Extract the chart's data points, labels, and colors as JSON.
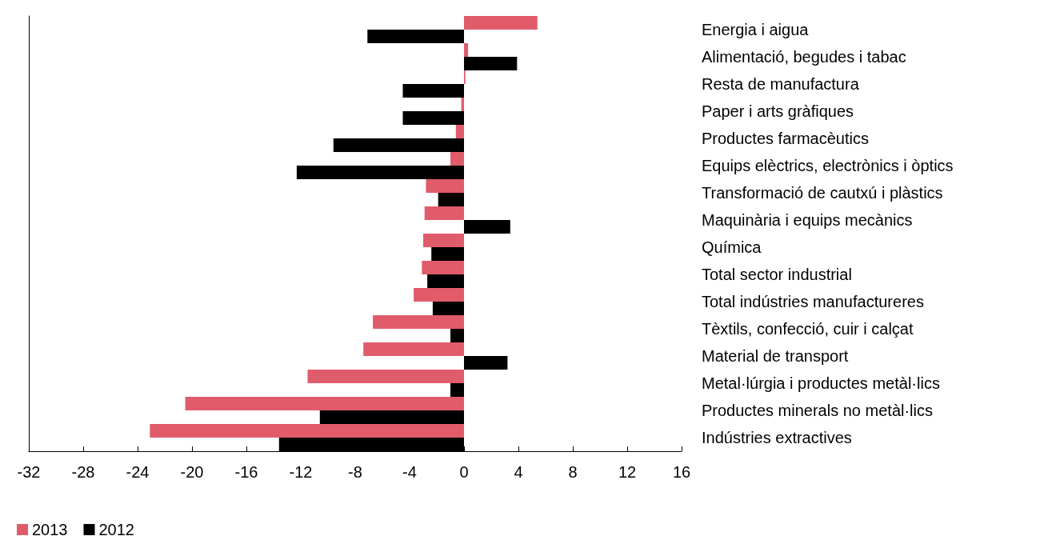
{
  "chart_data": {
    "type": "bar",
    "orientation": "horizontal",
    "categories": [
      "Energia i aigua",
      "Alimentació, begudes i tabac",
      "Resta de manufactura",
      "Paper i arts gràfiques",
      "Productes farmacèutics",
      "Equips elèctrics, electrònics i òptics",
      "Transformació de cautxú i plàstics",
      "Maquinària i equips mecànics",
      "Química",
      "Total sector industrial",
      "Total indústries manufactureres",
      "Tèxtils, confecció, cuir i calçat",
      "Material de transport",
      "Metal·lúrgia i productes metàl·lics",
      "Productes minerals no metàl·lics",
      "Indústries extractives"
    ],
    "series": [
      {
        "name": "2013",
        "color": "#e05c6b",
        "values": [
          5.4,
          0.3,
          0.1,
          -0.2,
          -0.6,
          -1.0,
          -2.8,
          -2.9,
          -3.0,
          -3.1,
          -3.7,
          -6.7,
          -7.4,
          -11.5,
          -20.5,
          -23.1
        ]
      },
      {
        "name": "2012",
        "color": "#000000",
        "values": [
          -7.1,
          3.9,
          -4.5,
          -4.5,
          -9.6,
          -12.3,
          -1.9,
          3.4,
          -2.4,
          -2.7,
          -2.3,
          -1.0,
          3.2,
          -1.0,
          -10.6,
          -13.6
        ]
      }
    ],
    "xlim": [
      -32,
      16
    ],
    "xticks": [
      -32,
      -28,
      -24,
      -20,
      -16,
      -12,
      -8,
      -4,
      0,
      4,
      8,
      12,
      16
    ],
    "grid": false,
    "legend": "bottom left"
  }
}
